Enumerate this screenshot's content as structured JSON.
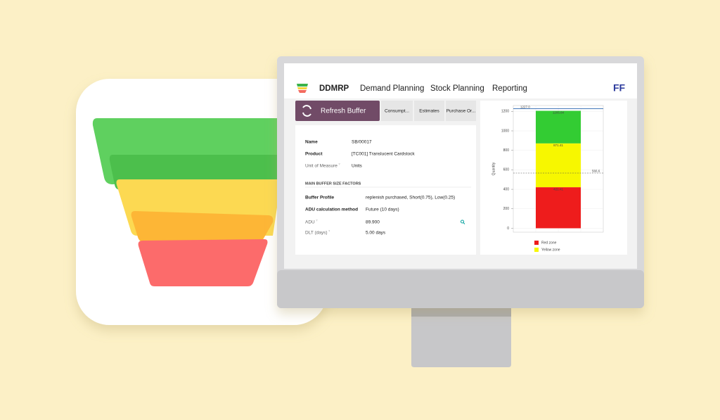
{
  "nav": {
    "brand": "DDMRP",
    "menu": [
      "Demand Planning",
      "Stock Planning",
      "Reporting"
    ],
    "user": "FF"
  },
  "toolbar": {
    "action": "Refresh Buffer",
    "tabs": [
      "Consumpt...",
      "Estimates",
      "Purchase Or..."
    ]
  },
  "form": {
    "fields": [
      {
        "label": "Name",
        "value": "SB/00017",
        "muted": false
      },
      {
        "label": "Product",
        "value": "[TC001] Translucent Cardstock",
        "muted": false
      },
      {
        "label": "Unit of Measure",
        "help": "?",
        "value": "Units",
        "muted": true
      }
    ],
    "section": "MAIN BUFFER SIZE FACTORS",
    "section_fields": [
      {
        "label": "Buffer Profile",
        "value": "replenish purchased, Short(0.75), Low(0.25)",
        "muted": false
      },
      {
        "label": "ADU calculation method",
        "value": "Future (10 days)",
        "muted": false
      },
      {
        "label": "ADU",
        "help": "?",
        "value": "89.900",
        "muted": true
      },
      {
        "label": "DLT (days)",
        "help": "?",
        "value": "5.00 days",
        "muted": true
      }
    ]
  },
  "chart_data": {
    "type": "bar",
    "stacked": true,
    "y_label": "Quantity",
    "categories": [
      null
    ],
    "series": [
      {
        "name": "Red zone",
        "color": "#ee1c1c",
        "values": [
          421.41
        ]
      },
      {
        "name": "Yellow zone",
        "color": "#f7f700",
        "values": [
          450
        ]
      },
      {
        "color": "#33cc33",
        "values": [
          334.43
        ]
      }
    ],
    "annotations": [
      "421.41",
      "871.41",
      "1205.84"
    ],
    "reference_lines": [
      {
        "value": 1227,
        "label": "1227.0",
        "color": "#2a64b0",
        "style": "solid"
      },
      {
        "value": 566.6,
        "color": "#555555",
        "style": "dashed"
      }
    ],
    "ylim": [
      -40,
      1260
    ],
    "yticks": [
      0,
      200,
      400,
      600,
      800,
      1000,
      1200
    ],
    "grid": true
  }
}
